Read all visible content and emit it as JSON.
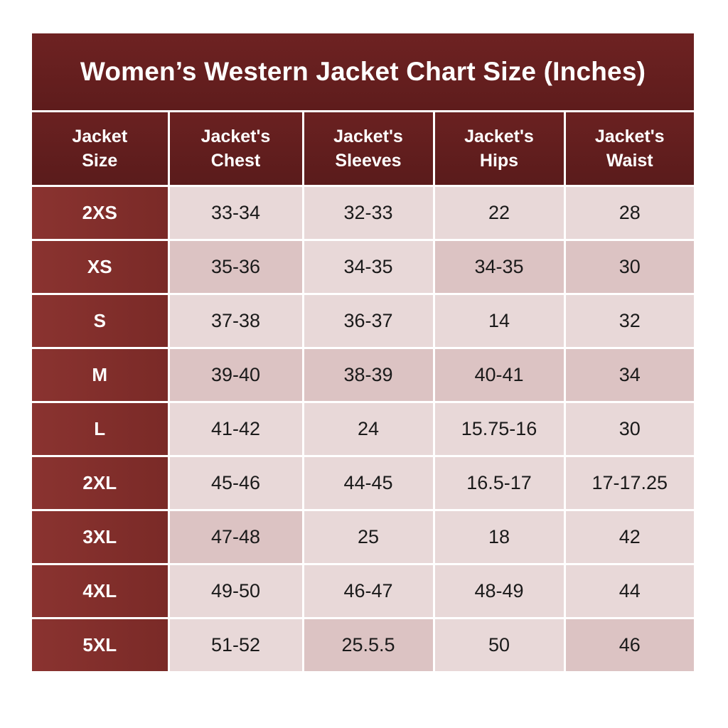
{
  "title": "Women’s Western Jacket Chart Size (Inches)",
  "headers": [
    [
      "Jacket",
      "Size"
    ],
    [
      "Jacket's",
      "Chest"
    ],
    [
      "Jacket's",
      "Sleeves"
    ],
    [
      "Jacket's",
      "Hips"
    ],
    [
      "Jacket's",
      "Waist"
    ]
  ],
  "rows": [
    {
      "size": "2XS",
      "chest": "33-34",
      "sleeves": "32-33",
      "hips": "22",
      "waist": "28"
    },
    {
      "size": "XS",
      "chest": "35-36",
      "sleeves": "34-35",
      "hips": "34-35",
      "waist": "30"
    },
    {
      "size": "S",
      "chest": "37-38",
      "sleeves": "36-37",
      "hips": "14",
      "waist": "32"
    },
    {
      "size": "M",
      "chest": "39-40",
      "sleeves": "38-39",
      "hips": "40-41",
      "waist": "34"
    },
    {
      "size": "L",
      "chest": "41-42",
      "sleeves": "24",
      "hips": "15.75-16",
      "waist": "30"
    },
    {
      "size": "2XL",
      "chest": "45-46",
      "sleeves": "44-45",
      "hips": "16.5-17",
      "waist": "17-17.25"
    },
    {
      "size": "3XL",
      "chest": "47-48",
      "sleeves": "25",
      "hips": "18",
      "waist": "42"
    },
    {
      "size": "4XL",
      "chest": "49-50",
      "sleeves": "46-47",
      "hips": "48-49",
      "waist": "44"
    },
    {
      "size": "5XL",
      "chest": "51-52",
      "sleeves": "25.5.5",
      "hips": "50",
      "waist": "46"
    }
  ],
  "colors": {
    "header_bg": "#5e1c1c",
    "size_col_bg": "#7a2a27",
    "cell_light": "#e8d8d8",
    "cell_dark": "#dcc3c3",
    "divider": "#ffffff"
  }
}
